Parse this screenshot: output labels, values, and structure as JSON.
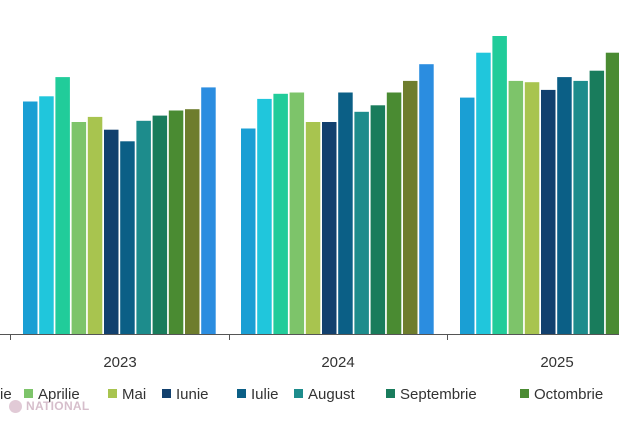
{
  "chart_data": {
    "type": "bar",
    "categories": [
      "2023",
      "2024",
      "2025"
    ],
    "series": [
      {
        "name": "",
        "color": "#1a9fd4",
        "values": [
          181,
          160,
          184
        ]
      },
      {
        "name": "",
        "color": "#20c6dc",
        "values": [
          185,
          183,
          219
        ]
      },
      {
        "name": "",
        "color": "#21cc9a",
        "values": [
          200,
          187,
          232
        ]
      },
      {
        "name": "Aprilie",
        "color": "#7dc46a",
        "values": [
          165,
          188,
          197
        ]
      },
      {
        "name": "Mai",
        "color": "#a8c44f",
        "values": [
          169,
          165,
          196
        ]
      },
      {
        "name": "Iunie",
        "color": "#12406e",
        "values": [
          159,
          165,
          190
        ]
      },
      {
        "name": "Iulie",
        "color": "#0b5f86",
        "values": [
          150,
          188,
          200
        ]
      },
      {
        "name": "August",
        "color": "#1d8c8c",
        "values": [
          166,
          173,
          197
        ]
      },
      {
        "name": "Septembrie",
        "color": "#197c5c",
        "values": [
          170,
          178,
          205
        ]
      },
      {
        "name": "Octombrie",
        "color": "#4a8b32",
        "values": [
          174,
          188,
          219
        ]
      },
      {
        "name": "",
        "color": "#6e7d2d",
        "values": [
          175,
          197,
          0
        ]
      },
      {
        "name": "",
        "color": "#2b8de0",
        "values": [
          192,
          210,
          0
        ]
      }
    ],
    "ylim": [
      0,
      260
    ],
    "grid": false,
    "legend_position": "bottom"
  },
  "legend": {
    "items": [
      {
        "label": "ie",
        "color": ""
      },
      {
        "label": "Aprilie",
        "color": "#7dc46a"
      },
      {
        "label": "Mai",
        "color": "#a8c44f"
      },
      {
        "label": "Iunie",
        "color": "#12406e"
      },
      {
        "label": "Iulie",
        "color": "#0b5f86"
      },
      {
        "label": "August",
        "color": "#1d8c8c"
      },
      {
        "label": "Septembrie",
        "color": "#197c5c"
      },
      {
        "label": "Octombrie",
        "color": "#4a8b32"
      }
    ]
  },
  "watermark": {
    "text": "NATIONAL"
  }
}
